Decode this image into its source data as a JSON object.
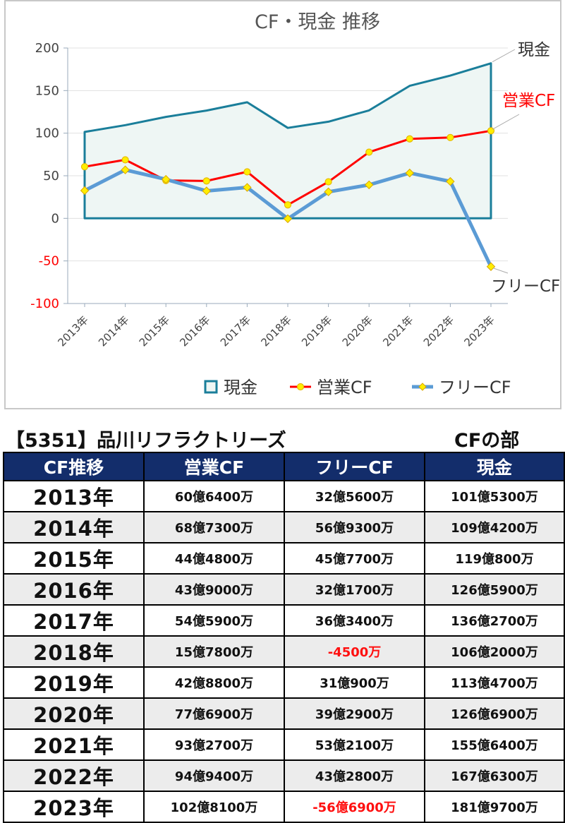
{
  "chart_data": {
    "type": "line",
    "title": "CF・現金 推移",
    "categories": [
      "2013年",
      "2014年",
      "2015年",
      "2016年",
      "2017年",
      "2018年",
      "2019年",
      "2020年",
      "2021年",
      "2022年",
      "2023年"
    ],
    "ylim": [
      -100,
      200
    ],
    "yticks": [
      200,
      150,
      100,
      50,
      0,
      -50,
      -100
    ],
    "grid": true,
    "legend_position": "bottom",
    "series": [
      {
        "name": "現金",
        "style": "area",
        "color": "#1a7e9a",
        "fill": "#eef6f4",
        "values": [
          101.5,
          109.4,
          119.1,
          126.6,
          136.3,
          106.2,
          113.5,
          126.7,
          155.6,
          167.6,
          182.0
        ]
      },
      {
        "name": "営業CF",
        "style": "line-markers",
        "color": "#ff0000",
        "values": [
          60.6,
          68.7,
          44.5,
          43.9,
          54.6,
          15.8,
          42.9,
          77.7,
          93.3,
          94.9,
          102.8
        ]
      },
      {
        "name": "フリーCF",
        "style": "line-markers",
        "color": "#5b9bd5",
        "values": [
          32.6,
          56.9,
          45.8,
          32.2,
          36.3,
          -0.45,
          31.1,
          39.3,
          53.2,
          43.3,
          -56.7
        ]
      }
    ],
    "end_labels": [
      "現金",
      "営業CF",
      "フリーCF"
    ]
  },
  "company_title": "【5351】品川リフラクトリーズ",
  "section_title": "CFの部",
  "table": {
    "headers": [
      "CF推移",
      "営業CF",
      "フリーCF",
      "現金"
    ],
    "rows": [
      {
        "year": "2013年",
        "op": "60億6400万",
        "free": "32億5600万",
        "cash": "101億5300万"
      },
      {
        "year": "2014年",
        "op": "68億7300万",
        "free": "56億9300万",
        "cash": "109億4200万"
      },
      {
        "year": "2015年",
        "op": "44億4800万",
        "free": "45億7700万",
        "cash": "119億800万"
      },
      {
        "year": "2016年",
        "op": "43億9000万",
        "free": "32億1700万",
        "cash": "126億5900万"
      },
      {
        "year": "2017年",
        "op": "54億5900万",
        "free": "36億3400万",
        "cash": "136億2700万"
      },
      {
        "year": "2018年",
        "op": "15億7800万",
        "free": "-4500万",
        "cash": "106億2000万"
      },
      {
        "year": "2019年",
        "op": "42億8800万",
        "free": "31億900万",
        "cash": "113億4700万"
      },
      {
        "year": "2020年",
        "op": "77億6900万",
        "free": "39億2900万",
        "cash": "126億6900万"
      },
      {
        "year": "2021年",
        "op": "93億2700万",
        "free": "53億2100万",
        "cash": "155億6400万"
      },
      {
        "year": "2022年",
        "op": "94億9400万",
        "free": "43億2800万",
        "cash": "167億6300万"
      },
      {
        "year": "2023年",
        "op": "102億8100万",
        "free": "-56億6900万",
        "cash": "181億9700万"
      }
    ]
  }
}
